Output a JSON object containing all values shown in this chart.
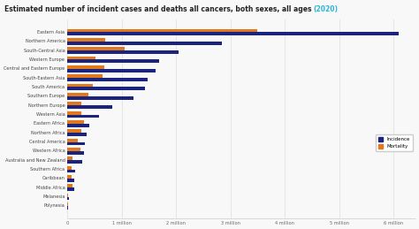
{
  "title_main": "Estimated number of incident cases and deaths all cancers, both sexes, all ages ",
  "title_year": "(2020)",
  "categories": [
    "Eastern Asia",
    "Northern America",
    "South-Central Asia",
    "Western Europe",
    "Central and Eastern Europe",
    "South-Eastern Asia",
    "South America",
    "Southern Europe",
    "Northern Europe",
    "Western Asia",
    "Eastern Africa",
    "Northern Africa",
    "Central America",
    "Western Africa",
    "Australia and New Zealand",
    "Southern Africa",
    "Caribbean",
    "Middle Africa",
    "Melanesia",
    "Polynesia"
  ],
  "incidence": [
    6100000,
    2850000,
    2050000,
    1680000,
    1620000,
    1480000,
    1430000,
    1220000,
    830000,
    580000,
    400000,
    360000,
    320000,
    300000,
    280000,
    140000,
    130000,
    130000,
    28000,
    12000
  ],
  "mortality": [
    3500000,
    700000,
    1050000,
    510000,
    680000,
    650000,
    470000,
    390000,
    250000,
    260000,
    310000,
    250000,
    200000,
    240000,
    90000,
    85000,
    75000,
    100000,
    20000,
    9000
  ],
  "incidence_color": "#1a237e",
  "mortality_color": "#e07820",
  "background_color": "#f8f8f8",
  "title_color": "#222222",
  "title_year_color": "#29b6d4",
  "xlim": [
    0,
    6400000
  ],
  "xtick_vals": [
    0,
    1000000,
    2000000,
    3000000,
    4000000,
    5000000,
    6000000
  ],
  "xtick_labels": [
    "0",
    "1 million",
    "2 million",
    "3 million",
    "4 million",
    "5 million",
    "6 million"
  ],
  "legend_incidence": "Incidence",
  "legend_mortality": "Mortality"
}
